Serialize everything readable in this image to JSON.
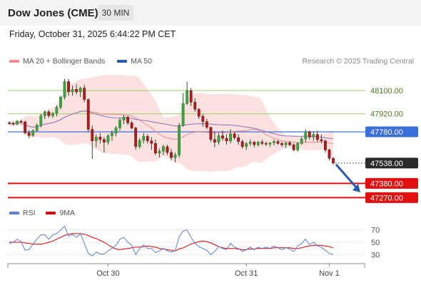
{
  "header": {
    "title": "Dow Jones (CME)",
    "timeframe": "30 MIN"
  },
  "date": "Friday, October 31, 2025 6:44:22 PM CET",
  "legend": {
    "ma20_label": "MA 20 + Bollinger Bands",
    "ma50_label": "MA 50",
    "ma20_color": "#f08c8c",
    "ma50_color": "#2a5aa8"
  },
  "copyright": "Research © 2025 Trading Central",
  "rsi_legend": {
    "rsi_label": "RSI",
    "ma9_label": "9MA",
    "rsi_color": "#5b7fd6",
    "ma9_color": "#e00000"
  },
  "chart_data": [
    {
      "type": "candlestick",
      "ylim": [
        47200,
        48250
      ],
      "xticks": [
        "Oct 30",
        "Oct 31",
        "Nov 1"
      ],
      "levels": [
        {
          "label": "48100.00",
          "value": 48100,
          "kind": "resistance"
        },
        {
          "label": "47920.00",
          "value": 47920,
          "kind": "resistance"
        },
        {
          "label": "47780.00",
          "value": 47780,
          "kind": "pivot"
        },
        {
          "label": "47538.00",
          "value": 47538,
          "kind": "last"
        },
        {
          "label": "47380.00",
          "value": 47380,
          "kind": "support"
        },
        {
          "label": "47270.00",
          "value": 47270,
          "kind": "support"
        }
      ],
      "ohlc": [
        [
          47850,
          47862,
          47835,
          47845
        ],
        [
          47845,
          47858,
          47830,
          47840
        ],
        [
          47840,
          47872,
          47832,
          47862
        ],
        [
          47862,
          47876,
          47850,
          47858
        ],
        [
          47858,
          47866,
          47760,
          47772
        ],
        [
          47772,
          47790,
          47730,
          47752
        ],
        [
          47752,
          47800,
          47742,
          47790
        ],
        [
          47790,
          47845,
          47782,
          47832
        ],
        [
          47832,
          47920,
          47815,
          47905
        ],
        [
          47905,
          47945,
          47880,
          47935
        ],
        [
          47935,
          47950,
          47890,
          47905
        ],
        [
          47905,
          47930,
          47888,
          47925
        ],
        [
          47925,
          47985,
          47900,
          47970
        ],
        [
          47970,
          48060,
          47952,
          48050
        ],
        [
          48050,
          48190,
          48032,
          48170
        ],
        [
          48170,
          48190,
          48060,
          48090
        ],
        [
          48090,
          48140,
          48060,
          48110
        ],
        [
          48110,
          48150,
          48070,
          48090
        ],
        [
          48090,
          48130,
          48050,
          48120
        ],
        [
          48120,
          48145,
          48010,
          48030
        ],
        [
          48030,
          48040,
          47780,
          47800
        ],
        [
          47800,
          47830,
          47570,
          47710
        ],
        [
          47710,
          47760,
          47660,
          47740
        ],
        [
          47740,
          47770,
          47690,
          47720
        ],
        [
          47720,
          47740,
          47620,
          47700
        ],
        [
          47700,
          47760,
          47680,
          47750
        ],
        [
          47750,
          47790,
          47710,
          47770
        ],
        [
          47770,
          47825,
          47745,
          47810
        ],
        [
          47810,
          47890,
          47790,
          47870
        ],
        [
          47870,
          47910,
          47840,
          47895
        ],
        [
          47895,
          47905,
          47832,
          47850
        ],
        [
          47850,
          47865,
          47800,
          47810
        ],
        [
          47810,
          47820,
          47640,
          47665
        ],
        [
          47665,
          47730,
          47650,
          47715
        ],
        [
          47715,
          47770,
          47690,
          47745
        ],
        [
          47745,
          47760,
          47690,
          47710
        ],
        [
          47710,
          47740,
          47640,
          47690
        ],
        [
          47690,
          47720,
          47600,
          47615
        ],
        [
          47615,
          47650,
          47580,
          47630
        ],
        [
          47630,
          47680,
          47600,
          47665
        ],
        [
          47665,
          47680,
          47600,
          47620
        ],
        [
          47620,
          47650,
          47560,
          47580
        ],
        [
          47580,
          47620,
          47545,
          47600
        ],
        [
          47600,
          47850,
          47580,
          47830
        ],
        [
          47830,
          48080,
          47820,
          48000
        ],
        [
          48000,
          48170,
          47990,
          48100
        ],
        [
          48100,
          48120,
          47980,
          48010
        ],
        [
          48010,
          48040,
          47935,
          47955
        ],
        [
          47955,
          47965,
          47880,
          47900
        ],
        [
          47900,
          47920,
          47820,
          47860
        ],
        [
          47860,
          47880,
          47800,
          47815
        ],
        [
          47815,
          47820,
          47700,
          47720
        ],
        [
          47720,
          47780,
          47660,
          47700
        ],
        [
          47700,
          47770,
          47680,
          47750
        ],
        [
          47750,
          47790,
          47710,
          47730
        ],
        [
          47730,
          47760,
          47680,
          47710
        ],
        [
          47710,
          47800,
          47690,
          47765
        ],
        [
          47765,
          47780,
          47720,
          47735
        ],
        [
          47735,
          47760,
          47680,
          47705
        ],
        [
          47705,
          47720,
          47650,
          47665
        ],
        [
          47665,
          47700,
          47640,
          47690
        ],
        [
          47690,
          47720,
          47670,
          47700
        ],
        [
          47700,
          47710,
          47660,
          47680
        ],
        [
          47680,
          47710,
          47665,
          47700
        ],
        [
          47700,
          47720,
          47675,
          47690
        ],
        [
          47690,
          47705,
          47670,
          47685
        ],
        [
          47685,
          47700,
          47665,
          47695
        ],
        [
          47695,
          47720,
          47675,
          47705
        ],
        [
          47705,
          47715,
          47680,
          47690
        ],
        [
          47690,
          47705,
          47665,
          47680
        ],
        [
          47680,
          47700,
          47655,
          47695
        ],
        [
          47695,
          47710,
          47670,
          47680
        ],
        [
          47680,
          47690,
          47630,
          47640
        ],
        [
          47640,
          47700,
          47625,
          47690
        ],
        [
          47690,
          47740,
          47680,
          47725
        ],
        [
          47725,
          47800,
          47700,
          47780
        ],
        [
          47780,
          47790,
          47720,
          47740
        ],
        [
          47740,
          47780,
          47710,
          47760
        ],
        [
          47760,
          47790,
          47700,
          47720
        ],
        [
          47720,
          47760,
          47690,
          47710
        ],
        [
          47710,
          47720,
          47620,
          47640
        ],
        [
          47640,
          47650,
          47560,
          47575
        ],
        [
          47575,
          47585,
          47525,
          47538
        ]
      ]
    },
    {
      "type": "line",
      "name": "RSI",
      "yticks": [
        30,
        50,
        70
      ],
      "ylim": [
        20,
        80
      ],
      "rsi": [
        48,
        50,
        55,
        51,
        37,
        38,
        47,
        55,
        62,
        62,
        55,
        62,
        64,
        70,
        76,
        60,
        63,
        58,
        64,
        48,
        32,
        28,
        34,
        31,
        31,
        36,
        40,
        45,
        55,
        58,
        50,
        45,
        30,
        40,
        46,
        40,
        40,
        33,
        36,
        40,
        36,
        34,
        36,
        59,
        68,
        70,
        58,
        48,
        43,
        40,
        37,
        30,
        35,
        43,
        40,
        38,
        48,
        42,
        40,
        35,
        38,
        42,
        38,
        42,
        40,
        42,
        40,
        44,
        41,
        38,
        41,
        39,
        35,
        44,
        48,
        55,
        46,
        50,
        44,
        42,
        37,
        32,
        30
      ],
      "ma9": [
        50,
        50,
        50,
        50,
        49,
        48,
        47,
        47,
        47,
        48,
        50,
        52,
        55,
        58,
        61,
        63,
        64,
        64,
        64,
        63,
        61,
        58,
        56,
        53,
        50,
        46,
        42,
        39,
        38,
        39,
        40,
        41,
        42,
        42,
        43,
        44,
        43,
        42,
        40,
        39,
        38,
        37,
        36,
        39,
        41,
        44,
        47,
        49,
        51,
        52,
        51,
        49,
        46,
        43,
        41,
        40,
        40,
        40,
        39,
        38,
        38,
        39,
        39,
        40,
        40,
        40,
        40,
        41,
        41,
        41,
        41,
        41,
        40,
        40,
        41,
        43,
        44,
        45,
        45,
        45,
        44,
        43,
        41
      ]
    }
  ]
}
